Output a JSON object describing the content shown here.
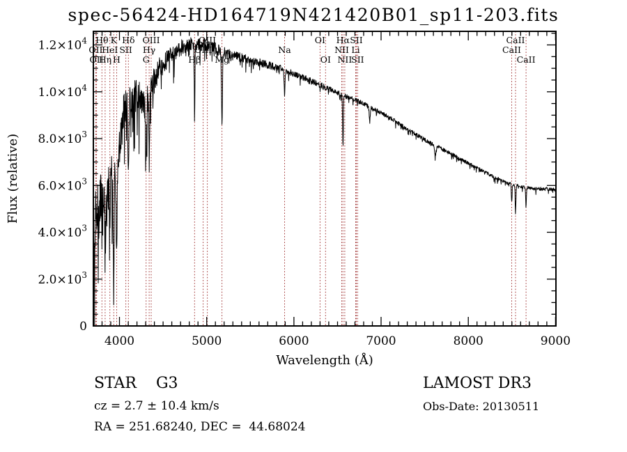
{
  "chart_data": {
    "type": "line",
    "title": "spec-56424-HD164719N421420B01_sp11-203.fits",
    "xlabel": "Wavelength (Å)",
    "ylabel": "Flux (relative)",
    "xlim": [
      3700,
      9005
    ],
    "ylim": [
      0,
      12580
    ],
    "grid": false,
    "x_major_ticks": [
      {
        "value": 4000,
        "label": "4000"
      },
      {
        "value": 5000,
        "label": "5000"
      },
      {
        "value": 6000,
        "label": "6000"
      },
      {
        "value": 7000,
        "label": "7000"
      },
      {
        "value": 8000,
        "label": "8000"
      },
      {
        "value": 9000,
        "label": "9000"
      }
    ],
    "x_minor_step": 100,
    "y_major_ticks": [
      {
        "value": 0,
        "base": "0",
        "exp": ""
      },
      {
        "value": 2000,
        "base": "2.0×10",
        "exp": "3"
      },
      {
        "value": 4000,
        "base": "4.0×10",
        "exp": "3"
      },
      {
        "value": 6000,
        "base": "6.0×10",
        "exp": "3"
      },
      {
        "value": 8000,
        "base": "8.0×10",
        "exp": "3"
      },
      {
        "value": 10000,
        "base": "1.0×10",
        "exp": "4"
      },
      {
        "value": 12000,
        "base": "1.2×10",
        "exp": "4"
      }
    ],
    "y_minor_step": 500,
    "spectrum_color": "#000000",
    "line_marker_color": "#a03232",
    "spectral_lines": [
      {
        "wavelength": 3727,
        "label": "OII",
        "row": 2
      },
      {
        "wavelength": 3737,
        "label": "OII",
        "row": 3
      },
      {
        "wavelength": 3798,
        "label": "Hθ",
        "row": 1
      },
      {
        "wavelength": 3835,
        "label": "Hη",
        "row": 3
      },
      {
        "wavelength": 3889,
        "label": "HeI",
        "row": 2
      },
      {
        "wavelength": 3934,
        "label": "K",
        "row": 1
      },
      {
        "wavelength": 3968,
        "label": "H",
        "row": 3
      },
      {
        "wavelength": 4072,
        "label": "SII",
        "row": 2
      },
      {
        "wavelength": 4102,
        "label": "Hδ",
        "row": 1
      },
      {
        "wavelength": 4305,
        "label": "G",
        "row": 3
      },
      {
        "wavelength": 4340,
        "label": "Hγ",
        "row": 2
      },
      {
        "wavelength": 4363,
        "label": "OIII",
        "row": 1
      },
      {
        "wavelength": 4861,
        "label": "Hβ",
        "row": 3
      },
      {
        "wavelength": 4959,
        "label": "OIII",
        "row": 2
      },
      {
        "wavelength": 5007,
        "label": "OIII",
        "row": 1
      },
      {
        "wavelength": 5175,
        "label": "Mg",
        "row": 3
      },
      {
        "wavelength": 5893,
        "label": "Na",
        "row": 2
      },
      {
        "wavelength": 6300,
        "label": "OI",
        "row": 1
      },
      {
        "wavelength": 6363,
        "label": "OI",
        "row": 3
      },
      {
        "wavelength": 6548,
        "label": "NII",
        "row": 2
      },
      {
        "wavelength": 6563,
        "label": "Hα",
        "row": 1
      },
      {
        "wavelength": 6583,
        "label": "NII",
        "row": 3
      },
      {
        "wavelength": 6708,
        "label": "Li",
        "row": 2
      },
      {
        "wavelength": 6716,
        "label": "SII",
        "row": 1
      },
      {
        "wavelength": 6731,
        "label": "SII",
        "row": 3
      },
      {
        "wavelength": 8498,
        "label": "CaII",
        "row": 2
      },
      {
        "wavelength": 8542,
        "label": "CaII",
        "row": 1
      },
      {
        "wavelength": 8662,
        "label": "CaII",
        "row": 3
      }
    ],
    "continuum_keypoints": [
      [
        3700,
        3500,
        4200
      ],
      [
        3720,
        4800,
        3400
      ],
      [
        3760,
        5000,
        2800
      ],
      [
        3800,
        5400,
        2600
      ],
      [
        3850,
        5100,
        2600
      ],
      [
        3900,
        6000,
        2300
      ],
      [
        3960,
        6300,
        2000
      ],
      [
        4000,
        7600,
        1800
      ],
      [
        4050,
        9300,
        1500
      ],
      [
        4120,
        9500,
        1400
      ],
      [
        4200,
        9900,
        1300
      ],
      [
        4280,
        9400,
        1300
      ],
      [
        4360,
        10100,
        1100
      ],
      [
        4450,
        11000,
        900
      ],
      [
        4550,
        11400,
        750
      ],
      [
        4700,
        11900,
        620
      ],
      [
        4820,
        12100,
        550
      ],
      [
        4900,
        12000,
        500
      ],
      [
        5000,
        12000,
        480
      ],
      [
        5100,
        11850,
        450
      ],
      [
        5250,
        11600,
        400
      ],
      [
        5400,
        11450,
        340
      ],
      [
        5550,
        11300,
        320
      ],
      [
        5700,
        11150,
        300
      ],
      [
        5850,
        11000,
        280
      ],
      [
        6000,
        10750,
        240
      ],
      [
        6150,
        10550,
        220
      ],
      [
        6300,
        10300,
        210
      ],
      [
        6450,
        10050,
        200
      ],
      [
        6600,
        9800,
        180
      ],
      [
        6750,
        9600,
        170
      ],
      [
        6900,
        9300,
        160
      ],
      [
        7100,
        8900,
        150
      ],
      [
        7300,
        8400,
        150
      ],
      [
        7500,
        7950,
        160
      ],
      [
        7700,
        7550,
        150
      ],
      [
        7900,
        7150,
        140
      ],
      [
        8100,
        6750,
        140
      ],
      [
        8300,
        6350,
        130
      ],
      [
        8450,
        6100,
        130
      ],
      [
        8600,
        5950,
        120
      ],
      [
        8750,
        5850,
        130
      ],
      [
        8900,
        5850,
        140
      ],
      [
        9000,
        5800,
        150
      ]
    ],
    "absorption_features": [
      [
        3727,
        900,
        5
      ],
      [
        3798,
        1600,
        6
      ],
      [
        3835,
        1900,
        6
      ],
      [
        3889,
        1500,
        6
      ],
      [
        3934,
        4300,
        7
      ],
      [
        3968,
        3800,
        7
      ],
      [
        4102,
        3300,
        7
      ],
      [
        4305,
        2500,
        9
      ],
      [
        4340,
        2700,
        7
      ],
      [
        4861,
        2900,
        6
      ],
      [
        5175,
        3000,
        8
      ],
      [
        5893,
        1150,
        6
      ],
      [
        6300,
        250,
        5
      ],
      [
        6363,
        200,
        5
      ],
      [
        6563,
        2300,
        6
      ],
      [
        6870,
        500,
        10
      ],
      [
        7620,
        430,
        12
      ],
      [
        8498,
        800,
        6
      ],
      [
        8542,
        1150,
        6
      ],
      [
        8662,
        820,
        6
      ]
    ],
    "end_drop": {
      "wavelength": 9001,
      "flux": 120
    },
    "sample_step": 3
  },
  "footer": {
    "class_label": "STAR    G3",
    "survey": "LAMOST DR3",
    "cz": "cz = 2.7 ± 10.4 km/s",
    "obs_date": "Obs-Date: 20130511",
    "radec": "RA = 251.68240, DEC =  44.68024"
  }
}
